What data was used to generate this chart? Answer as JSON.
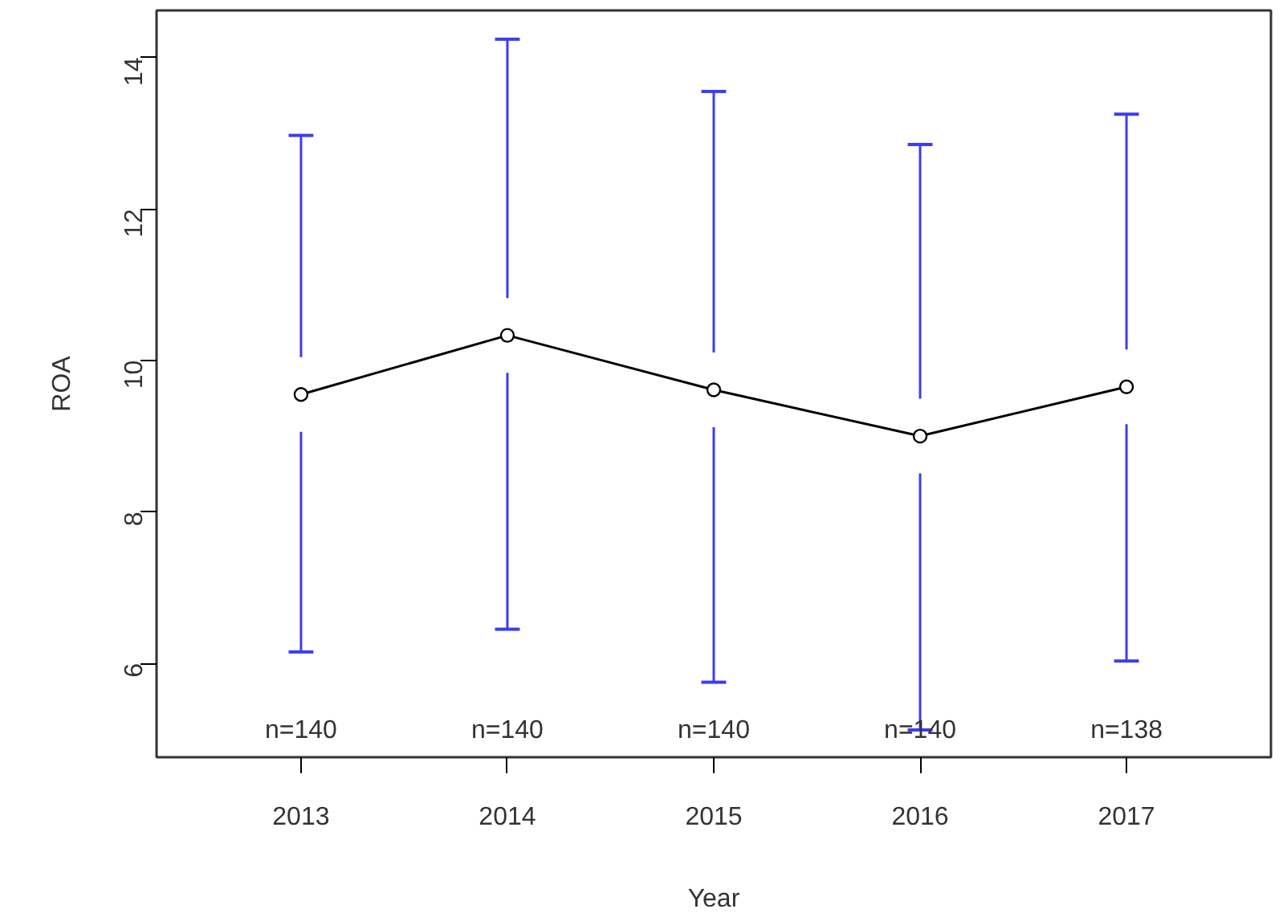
{
  "chart_data": {
    "type": "line",
    "xlabel": "Year",
    "ylabel": "ROA",
    "x": [
      2013,
      2014,
      2015,
      2016,
      2017
    ],
    "series": [
      {
        "color": "#000000",
        "values": [
          9.55,
          10.33,
          9.61,
          9.0,
          9.65
        ],
        "errors": [
          [
            6.15,
            12.97
          ],
          [
            6.45,
            14.24
          ],
          [
            5.75,
            13.55
          ],
          [
            5.12,
            12.85
          ],
          [
            6.03,
            13.25
          ]
        ]
      }
    ],
    "xlim": [
      2012.3,
      2017.7
    ],
    "ylim": [
      4.76,
      14.62
    ],
    "xticks": [
      2013,
      2014,
      2015,
      2016,
      2017
    ],
    "yticks": [
      6,
      8,
      10,
      12,
      14
    ],
    "marker": "circle",
    "line_style": "solid",
    "grid": false,
    "annotations": [
      "n=140",
      "n=140",
      "n=140",
      "n=140",
      "n=138"
    ]
  }
}
